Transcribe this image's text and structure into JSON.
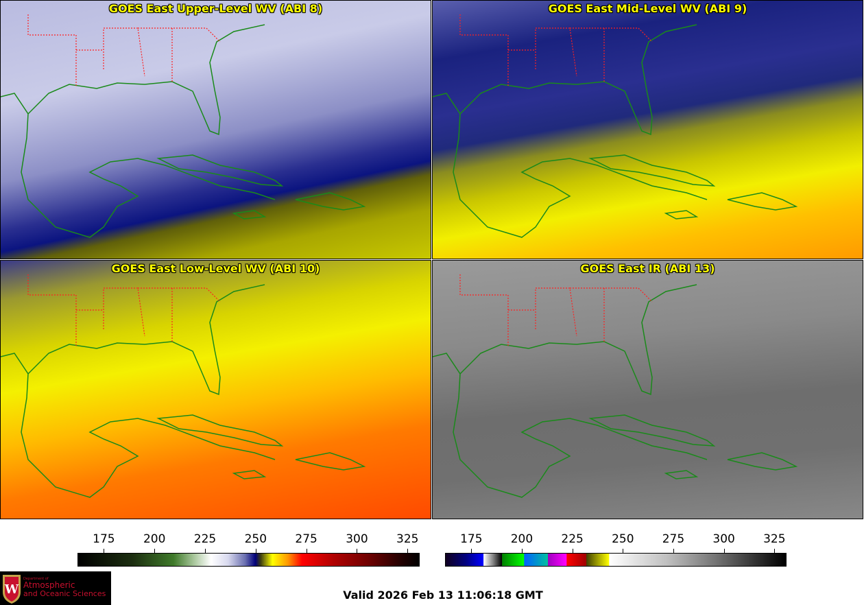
{
  "panels": [
    {
      "title": "GOES East Upper-Level WV (ABI 8)"
    },
    {
      "title": "GOES East Mid-Level WV (ABI 9)"
    },
    {
      "title": "GOES East Low-Level WV (ABI 10)"
    },
    {
      "title": "GOES East IR (ABI 13)"
    }
  ],
  "colorbars": [
    {
      "name": "water-vapor",
      "ticks": [
        "175",
        "200",
        "225",
        "250",
        "275",
        "300",
        "325"
      ],
      "range_K": [
        162,
        331
      ]
    },
    {
      "name": "infrared",
      "ticks": [
        "175",
        "200",
        "225",
        "250",
        "275",
        "300",
        "325"
      ],
      "range_K": [
        162,
        331
      ]
    }
  ],
  "logo": {
    "line1": "Department of",
    "line2": "Atmospheric",
    "line3": "and Oceanic Sciences",
    "crest_letter": "W"
  },
  "valid_time": "Valid 2026 Feb 13 11:06:18 GMT",
  "colors": {
    "title": "#ffff00",
    "coastline": "#1a8a1a",
    "state_borders": "#ff2020"
  }
}
